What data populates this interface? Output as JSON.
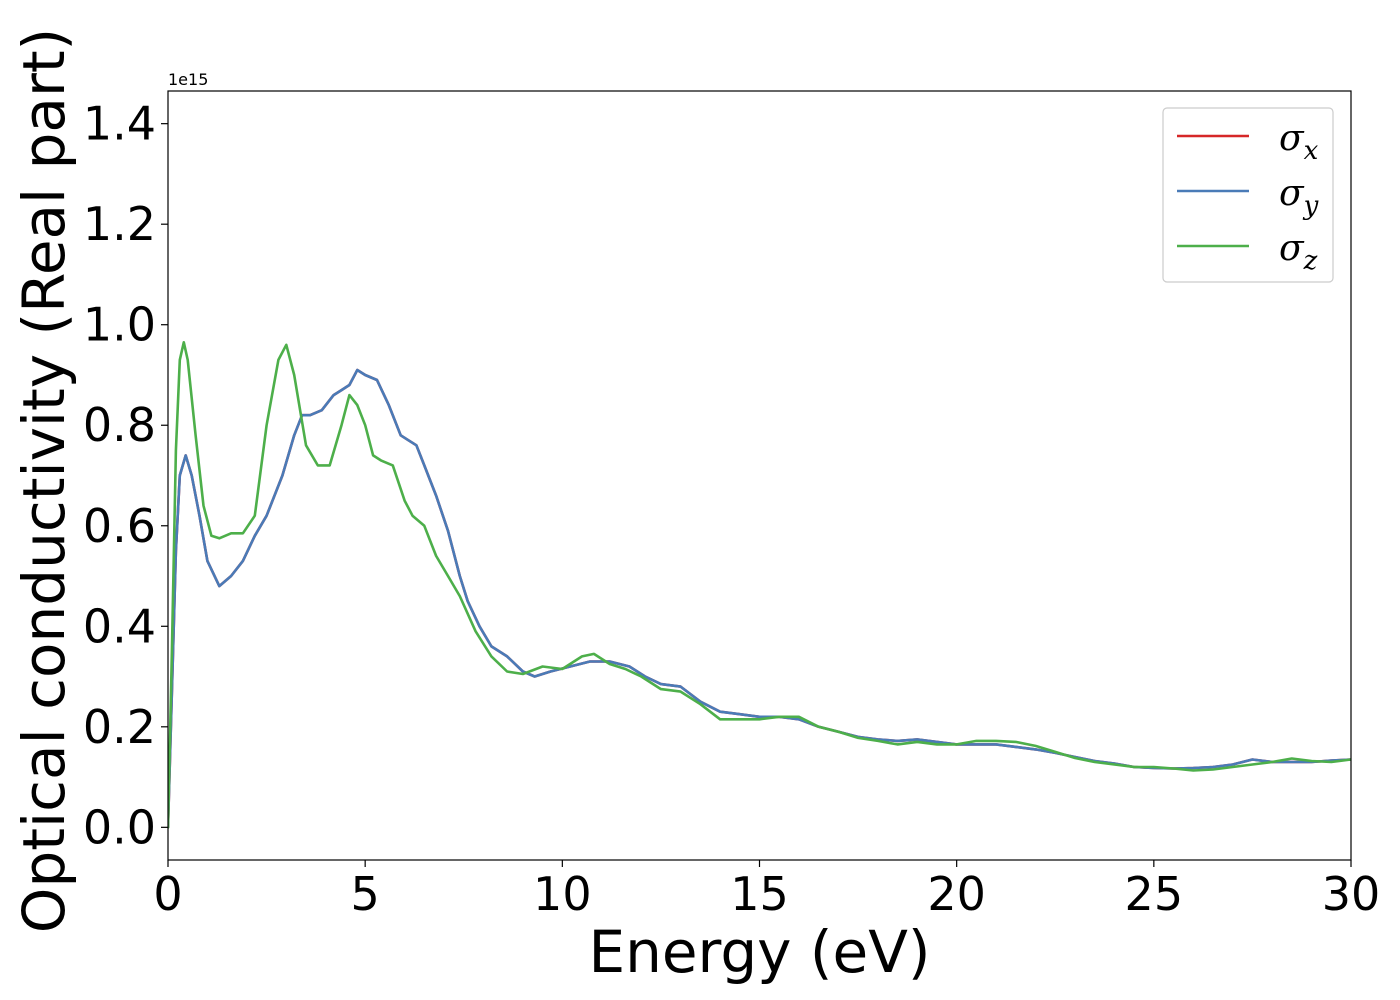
{
  "chart_data": {
    "type": "line",
    "title": "",
    "xlabel": "Energy (eV)",
    "ylabel": "Optical conductivity (Real part)",
    "y_offset_label": "1e15",
    "xlim": [
      0,
      30
    ],
    "ylim": [
      -0.065,
      1.465
    ],
    "x_ticks": [
      0,
      5,
      10,
      15,
      20,
      25,
      30
    ],
    "x_tick_labels": [
      "0",
      "5",
      "10",
      "15",
      "20",
      "25",
      "30"
    ],
    "y_ticks": [
      0.0,
      0.2,
      0.4,
      0.6,
      0.8,
      1.0,
      1.2,
      1.4
    ],
    "y_tick_labels": [
      "0.0",
      "0.2",
      "0.4",
      "0.6",
      "0.8",
      "1.0",
      "1.2",
      "1.4"
    ],
    "grid": false,
    "legend_position": "top-right",
    "series": [
      {
        "name": "σx",
        "symbol": "σ",
        "subscript": "x",
        "color": "#d62728",
        "x": [
          0,
          0.1,
          0.2,
          0.3,
          0.45,
          0.6,
          0.8,
          1.0,
          1.3,
          1.6,
          1.9,
          2.2,
          2.5,
          2.9,
          3.2,
          3.4,
          3.6,
          3.9,
          4.2,
          4.4,
          4.6,
          4.8,
          5.0,
          5.3,
          5.6,
          5.9,
          6.1,
          6.3,
          6.5,
          6.8,
          7.1,
          7.4,
          7.6,
          7.9,
          8.2,
          8.6,
          9.0,
          9.3,
          9.7,
          10.2,
          10.7,
          11.2,
          11.7,
          12.1,
          12.5,
          13.0,
          13.5,
          14.0,
          14.5,
          15.0,
          15.5,
          16.0,
          16.5,
          17.0,
          17.5,
          18.0,
          18.5,
          19.0,
          19.5,
          20.0,
          20.5,
          21.0,
          21.5,
          22.0,
          22.5,
          23.0,
          23.5,
          24.0,
          24.5,
          25.0,
          25.5,
          26.0,
          26.5,
          27.0,
          27.5,
          28.0,
          28.5,
          29.0,
          29.5,
          30.0
        ],
        "y": [
          0.0,
          0.27,
          0.55,
          0.7,
          0.74,
          0.7,
          0.62,
          0.53,
          0.48,
          0.5,
          0.53,
          0.58,
          0.62,
          0.7,
          0.78,
          0.82,
          0.82,
          0.83,
          0.86,
          0.87,
          0.88,
          0.91,
          0.9,
          0.89,
          0.84,
          0.78,
          0.77,
          0.76,
          0.72,
          0.66,
          0.59,
          0.5,
          0.45,
          0.4,
          0.36,
          0.34,
          0.31,
          0.3,
          0.31,
          0.32,
          0.33,
          0.33,
          0.32,
          0.3,
          0.285,
          0.28,
          0.25,
          0.23,
          0.225,
          0.22,
          0.22,
          0.215,
          0.2,
          0.19,
          0.18,
          0.175,
          0.172,
          0.175,
          0.17,
          0.165,
          0.165,
          0.165,
          0.16,
          0.155,
          0.148,
          0.14,
          0.132,
          0.127,
          0.12,
          0.118,
          0.117,
          0.118,
          0.12,
          0.125,
          0.135,
          0.13,
          0.13,
          0.13,
          0.133,
          0.135
        ]
      },
      {
        "name": "σy",
        "symbol": "σ",
        "subscript": "y",
        "color": "#4a7bb7",
        "x": [
          0,
          0.1,
          0.2,
          0.3,
          0.45,
          0.6,
          0.8,
          1.0,
          1.3,
          1.6,
          1.9,
          2.2,
          2.5,
          2.9,
          3.2,
          3.4,
          3.6,
          3.9,
          4.2,
          4.4,
          4.6,
          4.8,
          5.0,
          5.3,
          5.6,
          5.9,
          6.1,
          6.3,
          6.5,
          6.8,
          7.1,
          7.4,
          7.6,
          7.9,
          8.2,
          8.6,
          9.0,
          9.3,
          9.7,
          10.2,
          10.7,
          11.2,
          11.7,
          12.1,
          12.5,
          13.0,
          13.5,
          14.0,
          14.5,
          15.0,
          15.5,
          16.0,
          16.5,
          17.0,
          17.5,
          18.0,
          18.5,
          19.0,
          19.5,
          20.0,
          20.5,
          21.0,
          21.5,
          22.0,
          22.5,
          23.0,
          23.5,
          24.0,
          24.5,
          25.0,
          25.5,
          26.0,
          26.5,
          27.0,
          27.5,
          28.0,
          28.5,
          29.0,
          29.5,
          30.0
        ],
        "y": [
          0.0,
          0.27,
          0.55,
          0.7,
          0.74,
          0.7,
          0.62,
          0.53,
          0.48,
          0.5,
          0.53,
          0.58,
          0.62,
          0.7,
          0.78,
          0.82,
          0.82,
          0.83,
          0.86,
          0.87,
          0.88,
          0.91,
          0.9,
          0.89,
          0.84,
          0.78,
          0.77,
          0.76,
          0.72,
          0.66,
          0.59,
          0.5,
          0.45,
          0.4,
          0.36,
          0.34,
          0.31,
          0.3,
          0.31,
          0.32,
          0.33,
          0.33,
          0.32,
          0.3,
          0.285,
          0.28,
          0.25,
          0.23,
          0.225,
          0.22,
          0.22,
          0.215,
          0.2,
          0.19,
          0.18,
          0.175,
          0.172,
          0.175,
          0.17,
          0.165,
          0.165,
          0.165,
          0.16,
          0.155,
          0.148,
          0.14,
          0.132,
          0.127,
          0.12,
          0.118,
          0.117,
          0.118,
          0.12,
          0.125,
          0.135,
          0.13,
          0.13,
          0.13,
          0.133,
          0.135
        ]
      },
      {
        "name": "σz",
        "symbol": "σ",
        "subscript": "z",
        "color": "#4daf4a",
        "x": [
          0,
          0.1,
          0.2,
          0.3,
          0.4,
          0.5,
          0.7,
          0.9,
          1.1,
          1.3,
          1.6,
          1.9,
          2.2,
          2.5,
          2.8,
          3.0,
          3.2,
          3.5,
          3.8,
          4.1,
          4.4,
          4.6,
          4.8,
          5.0,
          5.2,
          5.4,
          5.7,
          6.0,
          6.2,
          6.5,
          6.8,
          7.1,
          7.4,
          7.8,
          8.2,
          8.6,
          9.0,
          9.5,
          10.0,
          10.5,
          10.8,
          11.2,
          11.6,
          12.0,
          12.5,
          13.0,
          13.5,
          14.0,
          14.5,
          15.0,
          15.5,
          16.0,
          16.5,
          17.0,
          17.5,
          18.0,
          18.5,
          19.0,
          19.5,
          20.0,
          20.5,
          21.0,
          21.5,
          22.0,
          22.5,
          23.0,
          23.5,
          24.0,
          24.5,
          25.0,
          25.5,
          26.0,
          26.5,
          27.0,
          27.5,
          28.0,
          28.5,
          29.0,
          29.5,
          30.0
        ],
        "y": [
          0.0,
          0.35,
          0.75,
          0.93,
          0.965,
          0.93,
          0.78,
          0.64,
          0.58,
          0.575,
          0.585,
          0.585,
          0.62,
          0.8,
          0.93,
          0.96,
          0.9,
          0.76,
          0.72,
          0.72,
          0.8,
          0.86,
          0.84,
          0.8,
          0.74,
          0.73,
          0.72,
          0.65,
          0.62,
          0.6,
          0.54,
          0.5,
          0.46,
          0.39,
          0.34,
          0.31,
          0.305,
          0.32,
          0.315,
          0.34,
          0.345,
          0.325,
          0.315,
          0.3,
          0.275,
          0.27,
          0.245,
          0.215,
          0.215,
          0.215,
          0.22,
          0.22,
          0.2,
          0.19,
          0.178,
          0.172,
          0.165,
          0.17,
          0.165,
          0.165,
          0.172,
          0.172,
          0.17,
          0.162,
          0.15,
          0.138,
          0.13,
          0.125,
          0.12,
          0.12,
          0.117,
          0.113,
          0.115,
          0.12,
          0.125,
          0.13,
          0.137,
          0.132,
          0.13,
          0.135
        ]
      }
    ]
  }
}
